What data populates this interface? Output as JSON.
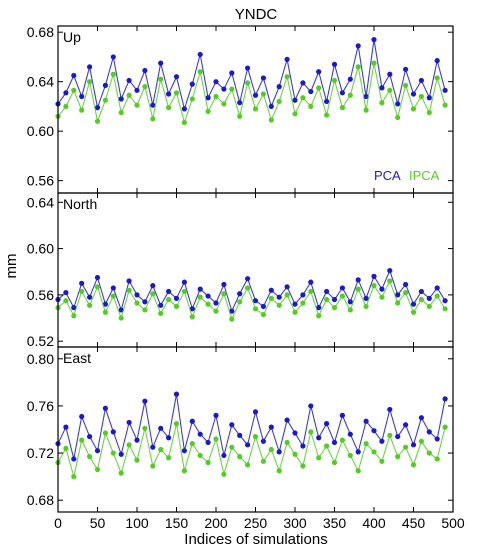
{
  "figure": {
    "title": "YNDC",
    "xlabel": "Indices of simulations",
    "ylabel": "mm",
    "legend": {
      "placement": "bottom-right of top panel",
      "entries": [
        "PCA",
        "IPCA"
      ]
    },
    "colors": {
      "PCA": "#1a1acc",
      "IPCA": "#55cc22",
      "frame": "#000000"
    }
  },
  "chart_data": [
    {
      "type": "line",
      "panel": "Up",
      "title": "Up",
      "x_range": [
        0,
        500
      ],
      "ylim": [
        0.55,
        0.685
      ],
      "yticks": [
        0.56,
        0.6,
        0.64,
        0.68
      ],
      "ytick_labels": [
        "0.56",
        "0.60",
        "0.64",
        "0.68"
      ],
      "x_sample_step": 10,
      "series": [
        {
          "name": "PCA",
          "values": [
            0.622,
            0.631,
            0.645,
            0.628,
            0.652,
            0.619,
            0.637,
            0.66,
            0.626,
            0.641,
            0.633,
            0.649,
            0.621,
            0.655,
            0.63,
            0.644,
            0.618,
            0.638,
            0.662,
            0.627,
            0.64,
            0.634,
            0.647,
            0.623,
            0.651,
            0.629,
            0.643,
            0.62,
            0.636,
            0.658,
            0.625,
            0.639,
            0.632,
            0.648,
            0.624,
            0.654,
            0.631,
            0.642,
            0.669,
            0.628,
            0.674,
            0.635,
            0.646,
            0.622,
            0.65,
            0.63,
            0.641,
            0.627,
            0.657,
            0.633
          ]
        },
        {
          "name": "IPCA",
          "values": [
            0.612,
            0.62,
            0.633,
            0.617,
            0.64,
            0.608,
            0.625,
            0.646,
            0.615,
            0.629,
            0.621,
            0.636,
            0.61,
            0.642,
            0.619,
            0.631,
            0.607,
            0.626,
            0.648,
            0.616,
            0.628,
            0.622,
            0.634,
            0.612,
            0.639,
            0.618,
            0.63,
            0.609,
            0.624,
            0.644,
            0.614,
            0.627,
            0.62,
            0.635,
            0.613,
            0.641,
            0.619,
            0.629,
            0.652,
            0.617,
            0.655,
            0.623,
            0.633,
            0.611,
            0.637,
            0.618,
            0.628,
            0.615,
            0.643,
            0.621
          ]
        }
      ]
    },
    {
      "type": "line",
      "panel": "North",
      "title": "North",
      "x_range": [
        0,
        500
      ],
      "ylim": [
        0.515,
        0.648
      ],
      "yticks": [
        0.52,
        0.56,
        0.6,
        0.64
      ],
      "ytick_labels": [
        "0.52",
        "0.56",
        "0.60",
        "0.64"
      ],
      "x_sample_step": 10,
      "series": [
        {
          "name": "PCA",
          "values": [
            0.556,
            0.562,
            0.549,
            0.57,
            0.558,
            0.575,
            0.552,
            0.566,
            0.547,
            0.572,
            0.56,
            0.554,
            0.568,
            0.551,
            0.563,
            0.557,
            0.571,
            0.548,
            0.565,
            0.559,
            0.553,
            0.569,
            0.546,
            0.561,
            0.574,
            0.555,
            0.55,
            0.564,
            0.558,
            0.567,
            0.552,
            0.56,
            0.571,
            0.549,
            0.563,
            0.556,
            0.566,
            0.554,
            0.573,
            0.557,
            0.576,
            0.565,
            0.581,
            0.56,
            0.569,
            0.552,
            0.563,
            0.557,
            0.566,
            0.555
          ]
        },
        {
          "name": "IPCA",
          "values": [
            0.549,
            0.555,
            0.542,
            0.563,
            0.551,
            0.567,
            0.545,
            0.559,
            0.54,
            0.564,
            0.553,
            0.547,
            0.561,
            0.544,
            0.556,
            0.55,
            0.563,
            0.541,
            0.558,
            0.552,
            0.546,
            0.561,
            0.539,
            0.554,
            0.566,
            0.548,
            0.543,
            0.557,
            0.551,
            0.56,
            0.545,
            0.553,
            0.563,
            0.542,
            0.556,
            0.549,
            0.559,
            0.547,
            0.565,
            0.55,
            0.568,
            0.558,
            0.572,
            0.553,
            0.562,
            0.545,
            0.556,
            0.55,
            0.559,
            0.548
          ]
        }
      ]
    },
    {
      "type": "line",
      "panel": "East",
      "title": "East",
      "x_range": [
        0,
        500
      ],
      "xlim": [
        0,
        500
      ],
      "xticks": [
        0,
        50,
        100,
        150,
        200,
        250,
        300,
        350,
        400,
        450,
        500
      ],
      "xtick_labels": [
        "0",
        "50",
        "100",
        "150",
        "200",
        "250",
        "300",
        "350",
        "400",
        "450",
        "500"
      ],
      "ylim": [
        0.67,
        0.81
      ],
      "yticks": [
        0.68,
        0.72,
        0.76,
        0.8
      ],
      "ytick_labels": [
        "0.68",
        "0.72",
        "0.76",
        "0.80"
      ],
      "x_sample_step": 10,
      "series": [
        {
          "name": "PCA",
          "values": [
            0.728,
            0.742,
            0.715,
            0.751,
            0.734,
            0.722,
            0.758,
            0.738,
            0.719,
            0.746,
            0.731,
            0.764,
            0.725,
            0.741,
            0.733,
            0.77,
            0.722,
            0.747,
            0.736,
            0.729,
            0.752,
            0.718,
            0.744,
            0.735,
            0.727,
            0.755,
            0.73,
            0.742,
            0.721,
            0.748,
            0.737,
            0.726,
            0.76,
            0.733,
            0.745,
            0.729,
            0.752,
            0.736,
            0.721,
            0.747,
            0.739,
            0.73,
            0.757,
            0.734,
            0.744,
            0.727,
            0.75,
            0.738,
            0.732,
            0.766
          ]
        },
        {
          "name": "IPCA",
          "values": [
            0.712,
            0.724,
            0.7,
            0.731,
            0.717,
            0.706,
            0.737,
            0.72,
            0.703,
            0.727,
            0.714,
            0.741,
            0.709,
            0.723,
            0.716,
            0.745,
            0.705,
            0.728,
            0.718,
            0.712,
            0.732,
            0.702,
            0.725,
            0.717,
            0.71,
            0.734,
            0.713,
            0.723,
            0.705,
            0.729,
            0.719,
            0.709,
            0.738,
            0.716,
            0.726,
            0.712,
            0.731,
            0.718,
            0.705,
            0.728,
            0.721,
            0.713,
            0.735,
            0.717,
            0.725,
            0.71,
            0.73,
            0.72,
            0.715,
            0.742
          ]
        }
      ]
    }
  ]
}
